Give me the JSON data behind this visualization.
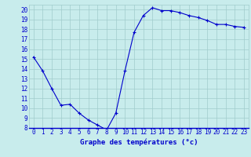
{
  "x": [
    0,
    1,
    2,
    3,
    4,
    5,
    6,
    7,
    8,
    9,
    10,
    11,
    12,
    13,
    14,
    15,
    16,
    17,
    18,
    19,
    20,
    21,
    22,
    23
  ],
  "y": [
    15.2,
    13.8,
    12.0,
    10.3,
    10.4,
    9.5,
    8.8,
    8.3,
    7.8,
    9.5,
    13.8,
    17.7,
    19.4,
    20.2,
    19.9,
    19.9,
    19.7,
    19.4,
    19.2,
    18.9,
    18.5,
    18.5,
    18.3,
    18.2
  ],
  "line_color": "#0000cc",
  "marker": "+",
  "marker_color": "#0000cc",
  "bg_color": "#c8ecec",
  "grid_color": "#a0cccc",
  "xlabel": "Graphe des températures (°c)",
  "xlabel_color": "#0000cc",
  "xlabel_fontsize": 6.5,
  "tick_color": "#0000cc",
  "tick_fontsize": 5.5,
  "ylim": [
    8,
    20.5
  ],
  "xlim": [
    -0.5,
    23.5
  ],
  "yticks": [
    8,
    9,
    10,
    11,
    12,
    13,
    14,
    15,
    16,
    17,
    18,
    19,
    20
  ],
  "xticks": [
    0,
    1,
    2,
    3,
    4,
    5,
    6,
    7,
    8,
    9,
    10,
    11,
    12,
    13,
    14,
    15,
    16,
    17,
    18,
    19,
    20,
    21,
    22,
    23
  ]
}
